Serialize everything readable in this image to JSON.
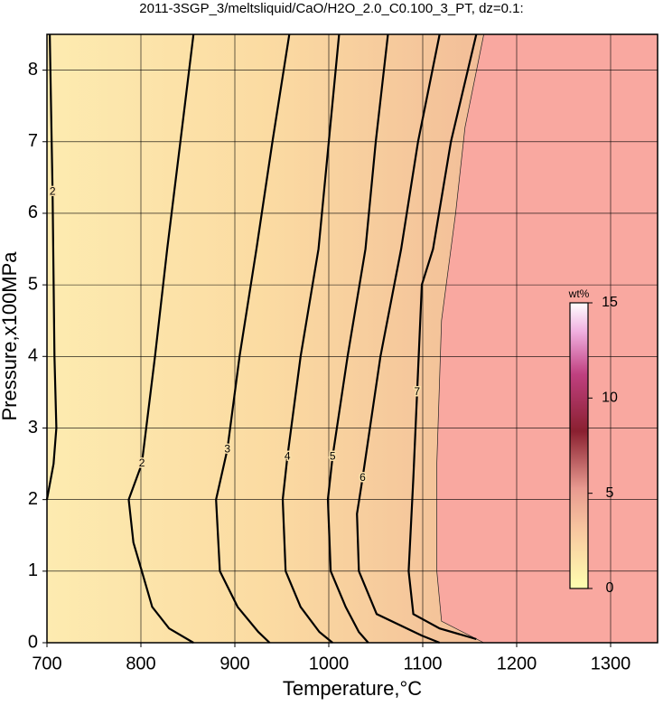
{
  "chart_data": {
    "type": "contour",
    "title": "2011-3SGP_3/meltsliquid/CaO/H2O_2.0_C0.100_3_PT, dz=0.1:",
    "xlabel": "Temperature,°C",
    "ylabel": "Pressure,x100MPa",
    "xlim": [
      700,
      1350
    ],
    "ylim": [
      0,
      8.5
    ],
    "xticks": [
      700,
      800,
      900,
      1000,
      1100,
      1200,
      1300
    ],
    "yticks": [
      0,
      1,
      2,
      3,
      4,
      5,
      6,
      7,
      8
    ],
    "grid": true,
    "contours": [
      {
        "level": 2,
        "x": [
          703,
          705,
          706,
          708,
          710,
          707,
          700
        ],
        "y": [
          8.5,
          7,
          6.3,
          4,
          3,
          2.5,
          2.0
        ]
      },
      {
        "level": 2,
        "x": [
          856,
          842,
          828,
          815,
          801,
          787,
          792,
          801,
          812,
          830,
          856
        ],
        "y": [
          8.5,
          7,
          5.5,
          4,
          2.5,
          2.0,
          1.4,
          1,
          0.5,
          0.2,
          0
        ]
      },
      {
        "level": 3,
        "x": [
          958,
          940,
          923,
          905,
          892,
          880,
          884,
          903,
          925,
          937
        ],
        "y": [
          8.5,
          7,
          5.5,
          4,
          2.7,
          2,
          1,
          0.5,
          0.15,
          0
        ]
      },
      {
        "level": 4,
        "x": [
          1011,
          1000,
          989,
          970,
          956,
          951,
          954,
          970,
          990,
          1004
        ],
        "y": [
          8.5,
          7,
          5.5,
          4,
          2.6,
          2,
          1,
          0.5,
          0.15,
          0
        ]
      },
      {
        "level": 5,
        "x": [
          1063,
          1050,
          1039,
          1020,
          1004,
          999,
          1002,
          1018,
          1032,
          1042
        ],
        "y": [
          8.5,
          7,
          5.5,
          4,
          2.6,
          2,
          1,
          0.5,
          0.15,
          0
        ]
      },
      {
        "level": 6,
        "x": [
          1118,
          1095,
          1077,
          1055,
          1036,
          1030,
          1032,
          1051,
          1099,
          1118
        ],
        "y": [
          8.5,
          7,
          5.5,
          4,
          2.3,
          1.8,
          1,
          0.4,
          0.1,
          0
        ]
      },
      {
        "level": 7,
        "x": [
          1157,
          1130,
          1111,
          1099,
          1094,
          1090,
          1085,
          1090,
          1118,
          1157
        ],
        "y": [
          8.5,
          7,
          5.5,
          5,
          3.5,
          2.3,
          1,
          0.4,
          0.2,
          0.05
        ]
      }
    ],
    "melt_edge": {
      "x": [
        1165,
        1145,
        1135,
        1120,
        1115,
        1115,
        1120,
        1150,
        1165
      ],
      "y": [
        8.5,
        7.2,
        6,
        4.5,
        2.5,
        1,
        0.3,
        0.1,
        0
      ]
    },
    "colorbar": {
      "label": "wt%",
      "lim": [
        0,
        15
      ],
      "ticks": [
        0,
        5,
        10,
        15
      ]
    }
  }
}
